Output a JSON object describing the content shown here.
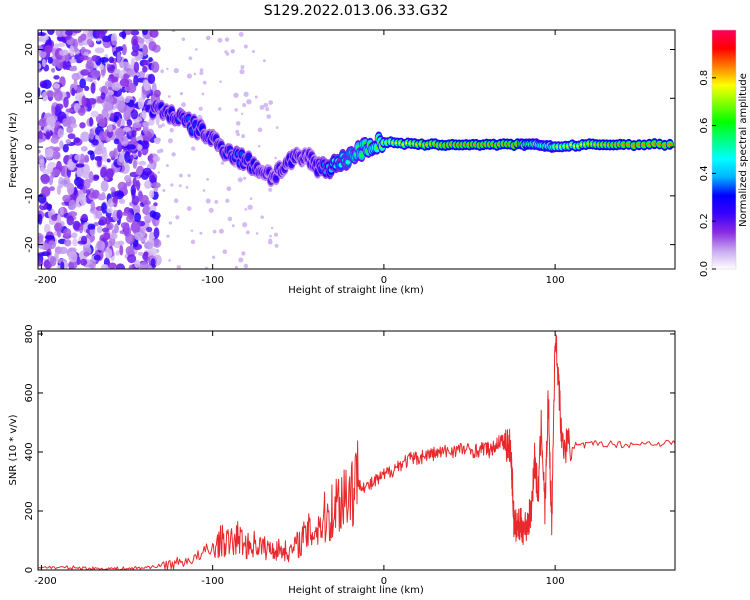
{
  "chart_data": [
    {
      "type": "heatmap",
      "title": "S129.2022.013.06.33.G32",
      "xlabel": "Height of straight line (km)",
      "ylabel": "Frequency (Hz)",
      "xlim": [
        -202,
        170
      ],
      "ylim": [
        -25,
        24
      ],
      "xticks": [
        -200,
        -100,
        0,
        100
      ],
      "yticks": [
        -20,
        -10,
        0,
        10,
        20
      ],
      "grid": false,
      "colorbar": {
        "label": "Normalized spectral amplitude",
        "range": [
          0,
          1
        ],
        "ticks": [
          "0.0",
          "0.2",
          "0.4",
          "0.6",
          "0.8"
        ],
        "colors": [
          "#ffffff",
          "#c8a8f0",
          "#8a2be2",
          "#3a00ff",
          "#0000ff",
          "#00b4ff",
          "#00ffff",
          "#00ff80",
          "#00ff00",
          "#80ff00",
          "#ffff00",
          "#ff8000",
          "#ff0000",
          "#ff0060"
        ]
      },
      "ridge": {
        "x": [
          -135,
          -125,
          -115,
          -105,
          -95,
          -85,
          -75,
          -65,
          -55,
          -45,
          -38,
          -30,
          -20,
          -10,
          0,
          20,
          40,
          60,
          80,
          90,
          100,
          120,
          140,
          170
        ],
        "y": [
          8,
          7,
          5,
          3,
          0,
          -2,
          -4,
          -6,
          -3,
          -2,
          -4,
          -4,
          -2,
          0,
          1,
          0.5,
          0.5,
          0.5,
          0.5,
          0.5,
          0,
          0.5,
          0.5,
          0.5
        ],
        "amplitude": [
          0.3,
          0.3,
          0.35,
          0.3,
          0.3,
          0.35,
          0.3,
          0.25,
          0.3,
          0.25,
          0.3,
          0.45,
          0.5,
          0.6,
          0.7,
          0.8,
          0.85,
          0.85,
          0.85,
          0.7,
          0.7,
          0.8,
          0.85,
          0.85
        ]
      }
    },
    {
      "type": "line",
      "title": "",
      "xlabel": "Height of straight line (km)",
      "ylabel": "SNR (10 * v/v)",
      "xlim": [
        -202,
        170
      ],
      "ylim": [
        0,
        810
      ],
      "xticks": [
        -200,
        -100,
        0,
        100
      ],
      "yticks": [
        0,
        200,
        400,
        600,
        800
      ],
      "grid": false,
      "color": "#e8292c",
      "series": [
        {
          "x": [
            -202,
            -190,
            -180,
            -170,
            -160,
            -150,
            -140,
            -130,
            -120,
            -110,
            -100,
            -95,
            -90,
            -85,
            -80,
            -75,
            -70,
            -65,
            -60,
            -55,
            -50,
            -45,
            -40,
            -35,
            -30,
            -25,
            -20,
            -15,
            -10,
            -5,
            0,
            5,
            10,
            15,
            20,
            25,
            30,
            35,
            40,
            45,
            50,
            55,
            60,
            62,
            65,
            68,
            70,
            72,
            74,
            75,
            76,
            78,
            80,
            82,
            84,
            86,
            88,
            90,
            92,
            94,
            96,
            98,
            100,
            102,
            104,
            108,
            115,
            125,
            140,
            155,
            170
          ],
          "y": [
            10,
            8,
            8,
            5,
            5,
            5,
            8,
            15,
            25,
            40,
            70,
            100,
            90,
            110,
            80,
            90,
            75,
            70,
            70,
            60,
            90,
            120,
            140,
            170,
            200,
            250,
            270,
            300,
            280,
            300,
            320,
            340,
            360,
            375,
            380,
            390,
            395,
            400,
            405,
            410,
            405,
            405,
            415,
            400,
            420,
            440,
            430,
            425,
            415,
            300,
            150,
            145,
            150,
            140,
            160,
            200,
            380,
            250,
            500,
            200,
            580,
            150,
            800,
            650,
            420,
            425,
            420,
            430,
            425,
            430,
            430
          ]
        }
      ]
    }
  ]
}
